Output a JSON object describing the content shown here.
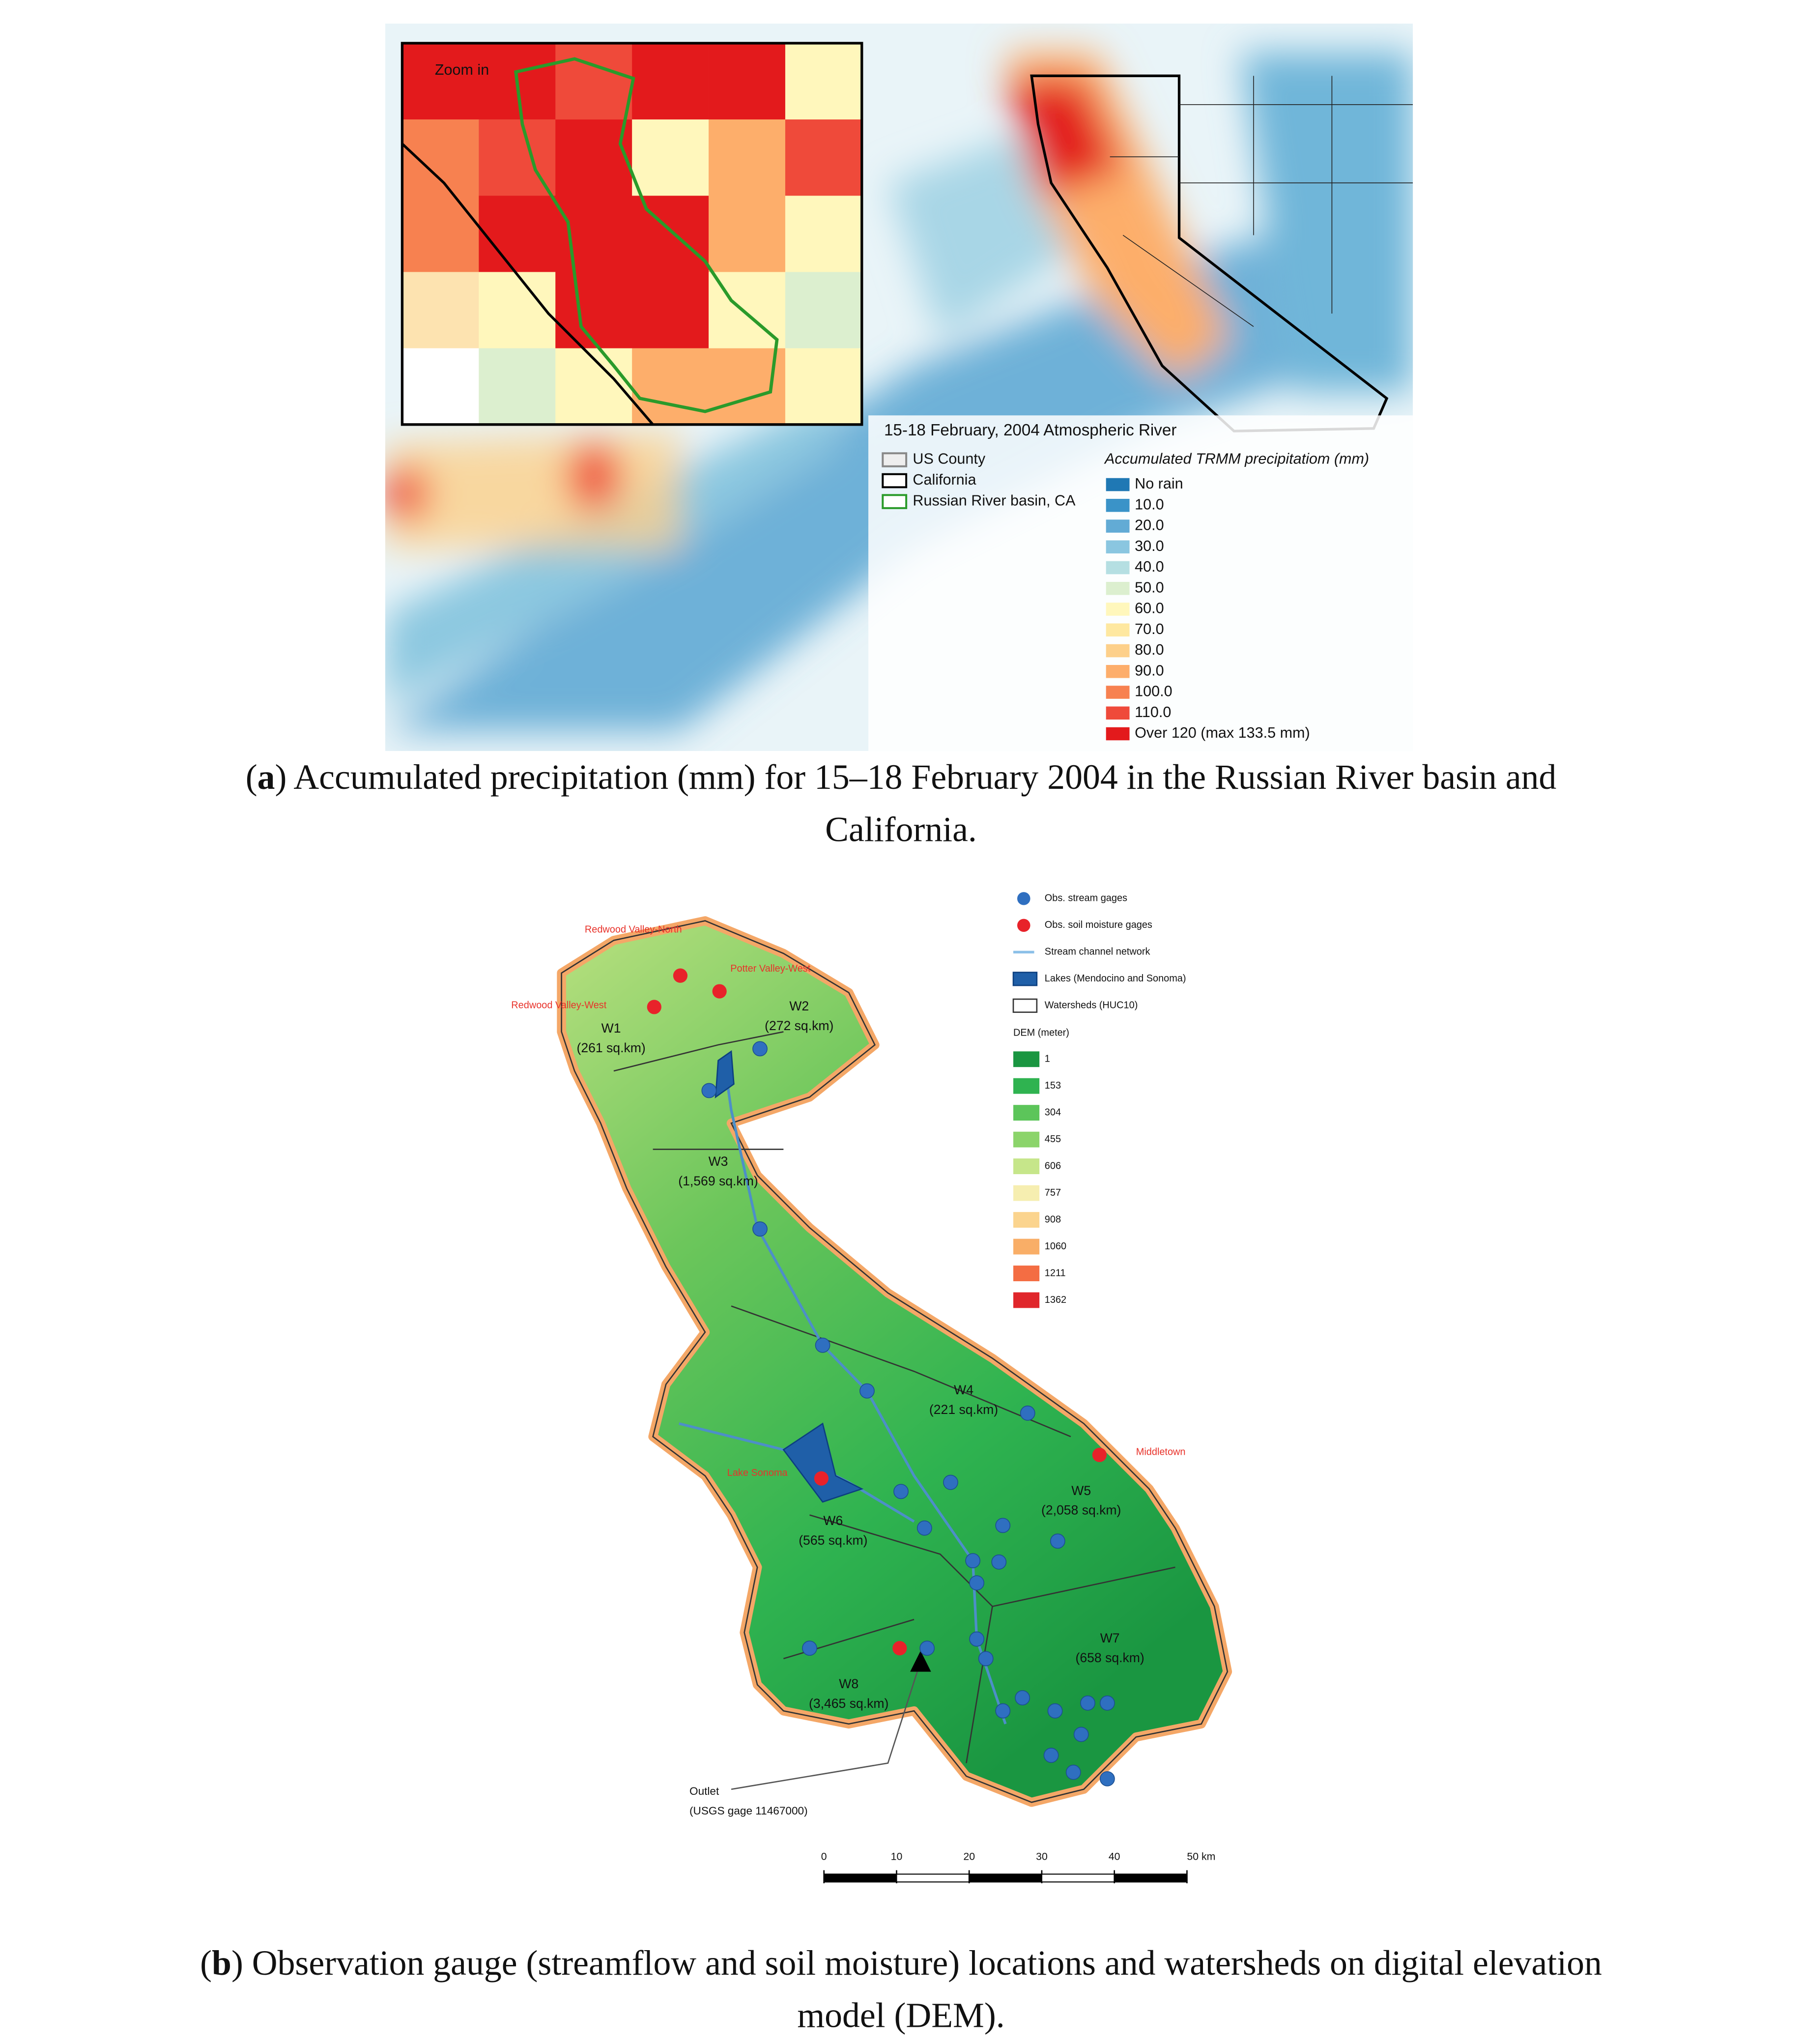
{
  "panel_a": {
    "zoom_label": "Zoom in",
    "title": "15-18 February, 2004 Atmospheric River",
    "boundary_legend": [
      "US County",
      "California",
      "Russian River basin, CA"
    ],
    "precip_legend_title": "Accumulated TRMM precipitatiom (mm)",
    "precip_classes": [
      {
        "label": "No rain",
        "color": "#1f78b4"
      },
      {
        "label": "10.0",
        "color": "#3a93c8"
      },
      {
        "label": "20.0",
        "color": "#62abd5"
      },
      {
        "label": "30.0",
        "color": "#8ac6e0"
      },
      {
        "label": "40.0",
        "color": "#b5dfe2"
      },
      {
        "label": "50.0",
        "color": "#dcefcf"
      },
      {
        "label": "60.0",
        "color": "#fff7bc"
      },
      {
        "label": "70.0",
        "color": "#fee8a0"
      },
      {
        "label": "80.0",
        "color": "#fdd08a"
      },
      {
        "label": "90.0",
        "color": "#fdae6b"
      },
      {
        "label": "100.0",
        "color": "#f78150"
      },
      {
        "label": "110.0",
        "color": "#ef4a3a"
      },
      {
        "label": "Over 120 (max 133.5 mm)",
        "color": "#e31a1c"
      }
    ],
    "caption": [
      [
        "(",
        "a",
        ") Accumulated precipitation (mm) for 15–18 February 2004 in the Russian River basin and"
      ],
      [
        "California."
      ]
    ]
  },
  "panel_b": {
    "legend": [
      "Obs. stream gages",
      "Obs. soil moisture gages",
      "Stream channel network",
      "Lakes (Mendocino and Sonoma)",
      "Watersheds (HUC10)"
    ],
    "dem_title": "DEM (meter)",
    "dem_classes": [
      {
        "label": "1",
        "color": "#1a9641"
      },
      {
        "label": "153",
        "color": "#2fb350"
      },
      {
        "label": "304",
        "color": "#5cc55a"
      },
      {
        "label": "455",
        "color": "#8bd46a"
      },
      {
        "label": "606",
        "color": "#c6e68a"
      },
      {
        "label": "757",
        "color": "#f6eeb0"
      },
      {
        "label": "908",
        "color": "#fbd48e"
      },
      {
        "label": "1060",
        "color": "#f9ae67"
      },
      {
        "label": "1211",
        "color": "#f46d43"
      },
      {
        "label": "1362",
        "color": "#e0262b"
      }
    ],
    "watersheds": [
      {
        "name": "W1",
        "area": "(261 sq.km)"
      },
      {
        "name": "W2",
        "area": "(272 sq.km)"
      },
      {
        "name": "W3",
        "area": "(1,569 sq.km)"
      },
      {
        "name": "W4",
        "area": "(221 sq.km)"
      },
      {
        "name": "W5",
        "area": "(2,058 sq.km)"
      },
      {
        "name": "W6",
        "area": "(565 sq.km)"
      },
      {
        "name": "W7",
        "area": "(658 sq.km)"
      },
      {
        "name": "W8",
        "area": "(3,465 sq.km)"
      }
    ],
    "soil_gages": [
      "Redwood Valley-North",
      "Potter Valley-West",
      "Redwood Valley-West",
      "Middletown",
      "Lake Sonoma"
    ],
    "outlet": [
      "Outlet",
      "(USGS gage 11467000)"
    ],
    "scale_ticks": [
      0,
      10,
      20,
      30,
      40,
      {
        "value": 50,
        "label": "50 km"
      }
    ],
    "caption": [
      [
        "(",
        "b",
        ") Observation gauge (streamflow and soil moisture) locations and watersheds on digital elevation"
      ],
      [
        "model (DEM)."
      ]
    ]
  }
}
